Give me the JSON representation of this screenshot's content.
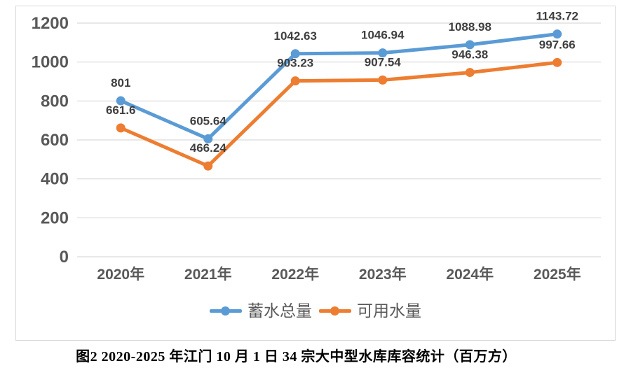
{
  "chart_data": {
    "type": "line",
    "categories": [
      "2020年",
      "2021年",
      "2022年",
      "2023年",
      "2024年",
      "2025年"
    ],
    "series": [
      {
        "name": "蓄水总量",
        "color": "#5B9BD5",
        "values": [
          801,
          605.64,
          1042.63,
          1046.94,
          1088.98,
          1143.72
        ]
      },
      {
        "name": "可用水量",
        "color": "#ED7D31",
        "values": [
          661.6,
          466.24,
          903.23,
          907.54,
          946.38,
          997.66
        ]
      }
    ],
    "title": "",
    "xlabel": "",
    "ylabel": "",
    "ylim": [
      0,
      1200
    ],
    "y_ticks": [
      0,
      200,
      400,
      600,
      800,
      1000,
      1200
    ],
    "grid": "horizontal",
    "legend_position": "bottom",
    "data_labels": "above",
    "marker": "circle"
  },
  "styles": {
    "frame_border_color": "#d9d9d9",
    "gridline_color": "#d9d9d9",
    "tick_label_color": "#595959",
    "data_label_color": "#3f3f3f",
    "legend_text_color": "#595959",
    "background": "#ffffff"
  },
  "caption": "图2 2020-2025 年江门 10 月 1 日 34 宗大中型水库库容统计（百万方）"
}
